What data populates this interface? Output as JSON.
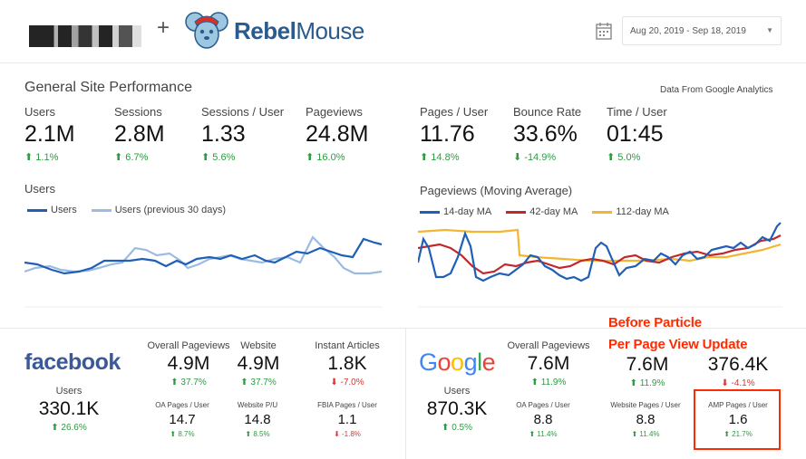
{
  "header": {
    "brand_bold": "Rebel",
    "brand_rest": "Mouse",
    "date_range": "Aug 20, 2019 - Sep 18, 2019",
    "icons": [
      "calendar-icon",
      "chevron-down-icon",
      "mouse-mascot-icon"
    ]
  },
  "site": {
    "title": "General Site Performance",
    "source_note": "Data From Google Analytics",
    "metrics": [
      {
        "label": "Users",
        "value": "2.1M",
        "change": "1.1%",
        "dir": "up"
      },
      {
        "label": "Sessions",
        "value": "2.8M",
        "change": "6.7%",
        "dir": "up"
      },
      {
        "label": "Sessions / User",
        "value": "1.33",
        "change": "5.6%",
        "dir": "up"
      },
      {
        "label": "Pageviews",
        "value": "24.8M",
        "change": "16.0%",
        "dir": "up"
      },
      {
        "label": "Pages / User",
        "value": "11.76",
        "change": "14.8%",
        "dir": "up"
      },
      {
        "label": "Bounce Rate",
        "value": "33.6%",
        "change": "-14.9%",
        "dir": "down"
      },
      {
        "label": "Time / User",
        "value": "01:45",
        "change": "5.0%",
        "dir": "up"
      }
    ]
  },
  "users_chart": {
    "title": "Users",
    "legend": [
      "Users",
      "Users (previous 30 days)"
    ],
    "colors": [
      "#1f5fb5",
      "#9bbbe3"
    ]
  },
  "pageviews_chart": {
    "title": "Pageviews (Moving Average)",
    "legend": [
      "14-day MA",
      "42-day MA",
      "112-day MA"
    ],
    "colors": [
      "#1f5fb5",
      "#c0282a",
      "#f2b630"
    ]
  },
  "facebook": {
    "logo": "facebook",
    "users_label": "Users",
    "users_value": "330.1K",
    "users_change": "26.6%",
    "top": [
      {
        "label": "Overall Pageviews",
        "value": "4.9M",
        "change": "37.7%",
        "dir": "up"
      },
      {
        "label": "Website",
        "value": "4.9M",
        "change": "37.7%",
        "dir": "up"
      },
      {
        "label": "Instant Articles",
        "value": "1.8K",
        "change": "-7.0%",
        "dir": "down"
      }
    ],
    "bottom": [
      {
        "label": "OA Pages / User",
        "value": "14.7",
        "change": "8.7%",
        "dir": "up"
      },
      {
        "label": "Website P/U",
        "value": "14.8",
        "change": "8.5%",
        "dir": "up"
      },
      {
        "label": "FBIA Pages / User",
        "value": "1.1",
        "change": "-1.8%",
        "dir": "down"
      }
    ]
  },
  "google": {
    "logo": "Google",
    "users_label": "Users",
    "users_value": "870.3K",
    "users_change": "0.5%",
    "top": [
      {
        "label": "Overall Pageviews",
        "value": "7.6M",
        "change": "11.9%",
        "dir": "up"
      },
      {
        "label": "",
        "value": "7.6M",
        "change": "11.9%",
        "dir": "up"
      },
      {
        "label": "",
        "value": "376.4K",
        "change": "-4.1%",
        "dir": "down"
      }
    ],
    "bottom": [
      {
        "label": "OA Pages / User",
        "value": "8.8",
        "change": "11.4%",
        "dir": "up"
      },
      {
        "label": "Website Pages / User",
        "value": "8.8",
        "change": "11.4%",
        "dir": "up"
      },
      {
        "label": "AMP Pages / User",
        "value": "1.6",
        "change": "21.7%",
        "dir": "up"
      }
    ]
  },
  "annotation": {
    "line1": "Before Particle",
    "line2": "Per Page View Update",
    "color": "#ff2a00"
  }
}
